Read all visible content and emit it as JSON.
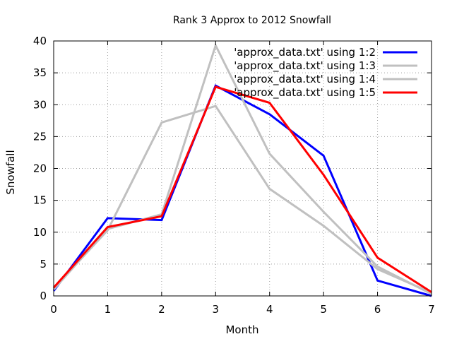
{
  "chart_data": {
    "type": "line",
    "title": "Rank 3 Approx to 2012 Snowfall",
    "xlabel": "Month",
    "ylabel": "Snowfall",
    "xlim": [
      0,
      7
    ],
    "ylim": [
      0,
      40
    ],
    "xticks": [
      0,
      1,
      2,
      3,
      4,
      5,
      6,
      7
    ],
    "yticks": [
      0,
      5,
      10,
      15,
      20,
      25,
      30,
      35,
      40
    ],
    "grid": true,
    "legend_position": "top-right",
    "series": [
      {
        "name": "'approx_data.txt' using 1:2",
        "color": "#0000ff",
        "x": [
          0,
          1,
          2,
          3,
          4,
          5,
          6,
          7
        ],
        "y": [
          0.8,
          12.2,
          11.9,
          33.0,
          28.5,
          22.0,
          2.4,
          0.0
        ]
      },
      {
        "name": "'approx_data.txt' using 1:3",
        "color": "#c0c0c0",
        "x": [
          0,
          1,
          2,
          3,
          4,
          5,
          6,
          7
        ],
        "y": [
          1.2,
          10.3,
          27.2,
          29.8,
          16.8,
          11.0,
          4.2,
          0.5
        ]
      },
      {
        "name": "'approx_data.txt' using 1:4",
        "color": "#c0c0c0",
        "x": [
          0,
          1,
          2,
          3,
          4,
          5,
          6,
          7
        ],
        "y": [
          1.0,
          10.5,
          12.8,
          39.3,
          22.3,
          13.2,
          4.6,
          0.3
        ]
      },
      {
        "name": "'approx_data.txt' using 1:5",
        "color": "#ff0000",
        "x": [
          0,
          1,
          2,
          3,
          4,
          5,
          6,
          7
        ],
        "y": [
          1.3,
          10.8,
          12.5,
          32.8,
          30.3,
          19.0,
          6.0,
          0.6
        ]
      }
    ]
  }
}
